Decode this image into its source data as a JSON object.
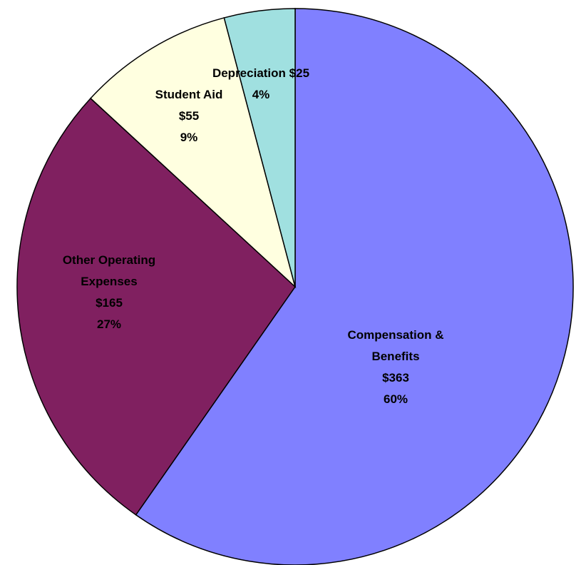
{
  "chart_data": {
    "type": "pie",
    "categories": [
      "Compensation & Benefits",
      "Other Operating Expenses",
      "Student Aid",
      "Depreciation"
    ],
    "values": [
      363,
      165,
      55,
      25
    ],
    "value_labels": [
      "$363",
      "$165",
      "$55",
      "$25"
    ],
    "percentages": [
      60,
      27,
      9,
      4
    ],
    "percentage_labels": [
      "60%",
      "27%",
      "9%",
      "4%"
    ],
    "colors": [
      "#8080ff",
      "#802060",
      "#ffffe0",
      "#a0e0e0"
    ]
  }
}
